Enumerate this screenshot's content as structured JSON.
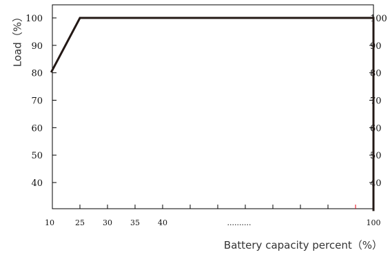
{
  "chart_data": {
    "type": "line",
    "title": "",
    "xlabel": "Battery capacity percent（%）",
    "ylabel": "Load（%）",
    "x_ticks": [
      "10",
      "25",
      "30",
      "35",
      "40",
      "100"
    ],
    "x_ellipsis": "..........",
    "y_ticks": [
      40,
      50,
      60,
      70,
      80,
      90,
      100
    ],
    "ylim": [
      30,
      105
    ],
    "grid": false,
    "legend": "none",
    "series": [
      {
        "x": [
          11,
          25,
          100,
          100
        ],
        "y": [
          80.5,
          100,
          100,
          30
        ]
      }
    ],
    "colors": {
      "line": "#231815",
      "axis": "#000000",
      "marker": "#e60012"
    }
  }
}
